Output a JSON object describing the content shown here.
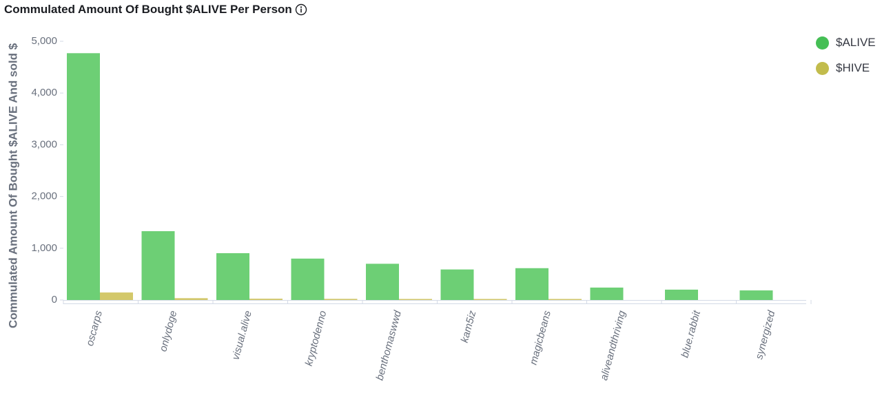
{
  "panel": {
    "title": "Commulated Amount Of Bought $ALIVE Per Person",
    "info_icon": "info-circle-icon"
  },
  "colors": {
    "alive": "#6dcf75",
    "hive": "#d3c86a",
    "axis": "#d3dae6",
    "text": "#69707d"
  },
  "legend": [
    {
      "label": "$ALIVE",
      "color": "#45bf55"
    },
    {
      "label": "$HIVE",
      "color": "#c2bc4c"
    }
  ],
  "chart_data": {
    "type": "bar",
    "title": "Commulated Amount Of Bought $ALIVE Per Person",
    "ylabel": "Commulated Amount Of Bought $ALIVE And sold $",
    "xlabel": "",
    "ylim": [
      0,
      5000
    ],
    "yticks": [
      0,
      1000,
      2000,
      3000,
      4000,
      5000
    ],
    "ytick_labels": [
      "0",
      "1,000",
      "2,000",
      "3,000",
      "4,000",
      "5,000"
    ],
    "grid": false,
    "legend_position": "top-right",
    "categories": [
      "oscarps",
      "onlydoge",
      "visual.alive",
      "kryptodenno",
      "benthomaswwd",
      "kam5iz",
      "magicbeans",
      "aliveandthriving",
      "blue.rabbit",
      "synergized"
    ],
    "series": [
      {
        "name": "$ALIVE",
        "values": [
          4770,
          1330,
          905,
          800,
          700,
          590,
          615,
          240,
          200,
          185
        ]
      },
      {
        "name": "$HIVE",
        "values": [
          145,
          35,
          25,
          22,
          20,
          15,
          12,
          0,
          0,
          0
        ]
      }
    ]
  }
}
